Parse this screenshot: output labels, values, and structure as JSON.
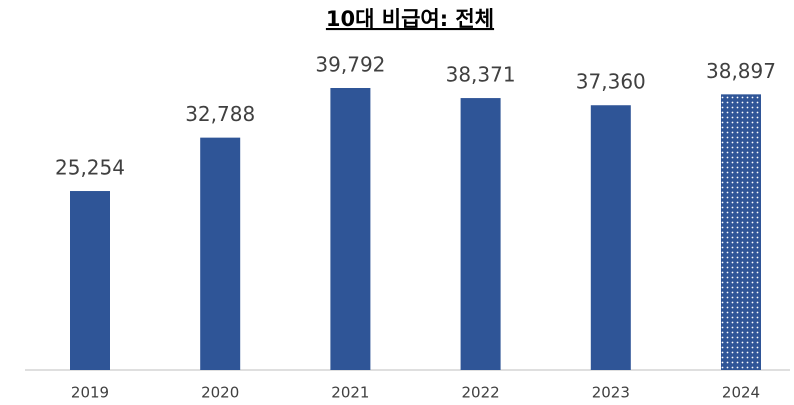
{
  "chart_data": {
    "type": "bar",
    "title": "10대 비급여: 전체",
    "categories": [
      "2019",
      "2020",
      "2021",
      "2022",
      "2023",
      "2024"
    ],
    "values": [
      25254,
      32788,
      39792,
      38371,
      37360,
      38897
    ],
    "value_labels": [
      "25,254",
      "32,788",
      "39,792",
      "38,371",
      "37,360",
      "38,897"
    ],
    "dotted": [
      false,
      false,
      false,
      false,
      false,
      true
    ],
    "color": "#2f5597"
  }
}
